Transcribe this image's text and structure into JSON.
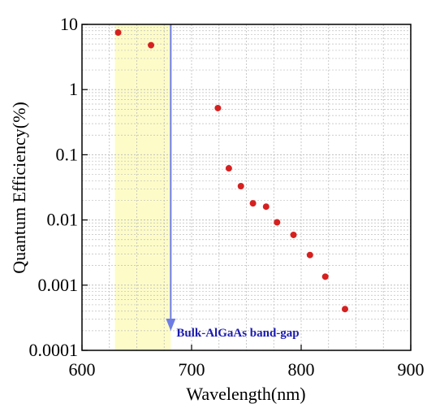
{
  "chart_data": {
    "type": "scatter",
    "title": "",
    "xlabel": "Wavelength(nm)",
    "ylabel": "Quantum Efficiency(%)",
    "xlim": [
      600,
      900
    ],
    "ylim": [
      0.0001,
      10
    ],
    "yscale": "log",
    "grid": true,
    "x_ticks": [
      600,
      700,
      800,
      900
    ],
    "x_tick_labels": [
      "600",
      "700",
      "800",
      "900"
    ],
    "y_ticks": [
      0.0001,
      0.001,
      0.01,
      0.1,
      1,
      10
    ],
    "y_tick_labels": [
      "0.0001",
      "0.001",
      "0.01",
      "0.1",
      "1",
      "10"
    ],
    "points": [
      {
        "x": 633,
        "y": 7.5
      },
      {
        "x": 663,
        "y": 4.8
      },
      {
        "x": 724,
        "y": 0.52
      },
      {
        "x": 734,
        "y": 0.062
      },
      {
        "x": 745,
        "y": 0.033
      },
      {
        "x": 756,
        "y": 0.018
      },
      {
        "x": 768,
        "y": 0.016
      },
      {
        "x": 778,
        "y": 0.0092
      },
      {
        "x": 793,
        "y": 0.0059
      },
      {
        "x": 808,
        "y": 0.0029
      },
      {
        "x": 822,
        "y": 0.00135
      },
      {
        "x": 840,
        "y": 0.00043
      }
    ],
    "highlight_band": {
      "x_start": 630,
      "x_end": 681
    },
    "marker_line": {
      "x": 681,
      "label": "Bulk-AlGaAs band-gap"
    },
    "colors": {
      "points": "#d62020",
      "band": "#fdfcc8",
      "marker": "#6e7de6",
      "annotation": "#1a1ab0",
      "grid": "#bdbdbd"
    }
  }
}
